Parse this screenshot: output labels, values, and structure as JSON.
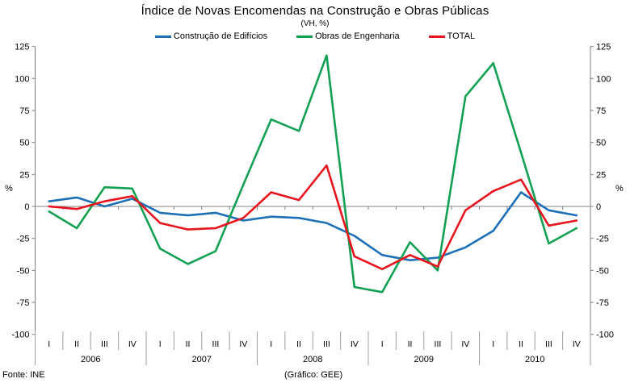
{
  "title": "Índice de Novas Encomendas na Construção e Obras Públicas",
  "subtitle": "(VH, %)",
  "footer": {
    "source": "Fonte: INE",
    "credit": "(Gráfico: GEE)"
  },
  "chart_data": {
    "type": "line",
    "title": "Índice de Novas Encomendas na Construção e Obras Públicas",
    "subtitle": "(VH, %)",
    "axis_unit": "%",
    "quarters": [
      "I",
      "II",
      "III",
      "IV"
    ],
    "years": [
      "2006",
      "2007",
      "2008",
      "2009",
      "2010"
    ],
    "ylim": [
      -100,
      125
    ],
    "ytick_step": 25,
    "grid": "zero-line-only",
    "legend_position": "top",
    "series": [
      {
        "name": "Construção de Edifícios",
        "color": "#1C70B8",
        "values": [
          4,
          7,
          0,
          6,
          -5,
          -7,
          -5,
          -11,
          -8,
          -9,
          -13,
          -23,
          -38,
          -42,
          -40,
          -32,
          -19,
          11,
          -3,
          -7
        ]
      },
      {
        "name": "Obras de Engenharia",
        "color": "#12A152",
        "values": [
          -4,
          -17,
          15,
          14,
          -33,
          -45,
          -35,
          17,
          68,
          59,
          118,
          -63,
          -67,
          -28,
          -50,
          86,
          112,
          42,
          -29,
          -17
        ]
      },
      {
        "name": "TOTAL",
        "color": "#E8141E",
        "values": [
          0,
          -2,
          4,
          8,
          -13,
          -18,
          -17,
          -9,
          11,
          5,
          32,
          -39,
          -49,
          -38,
          -47,
          -3,
          12,
          21,
          -15,
          -11
        ]
      }
    ]
  }
}
